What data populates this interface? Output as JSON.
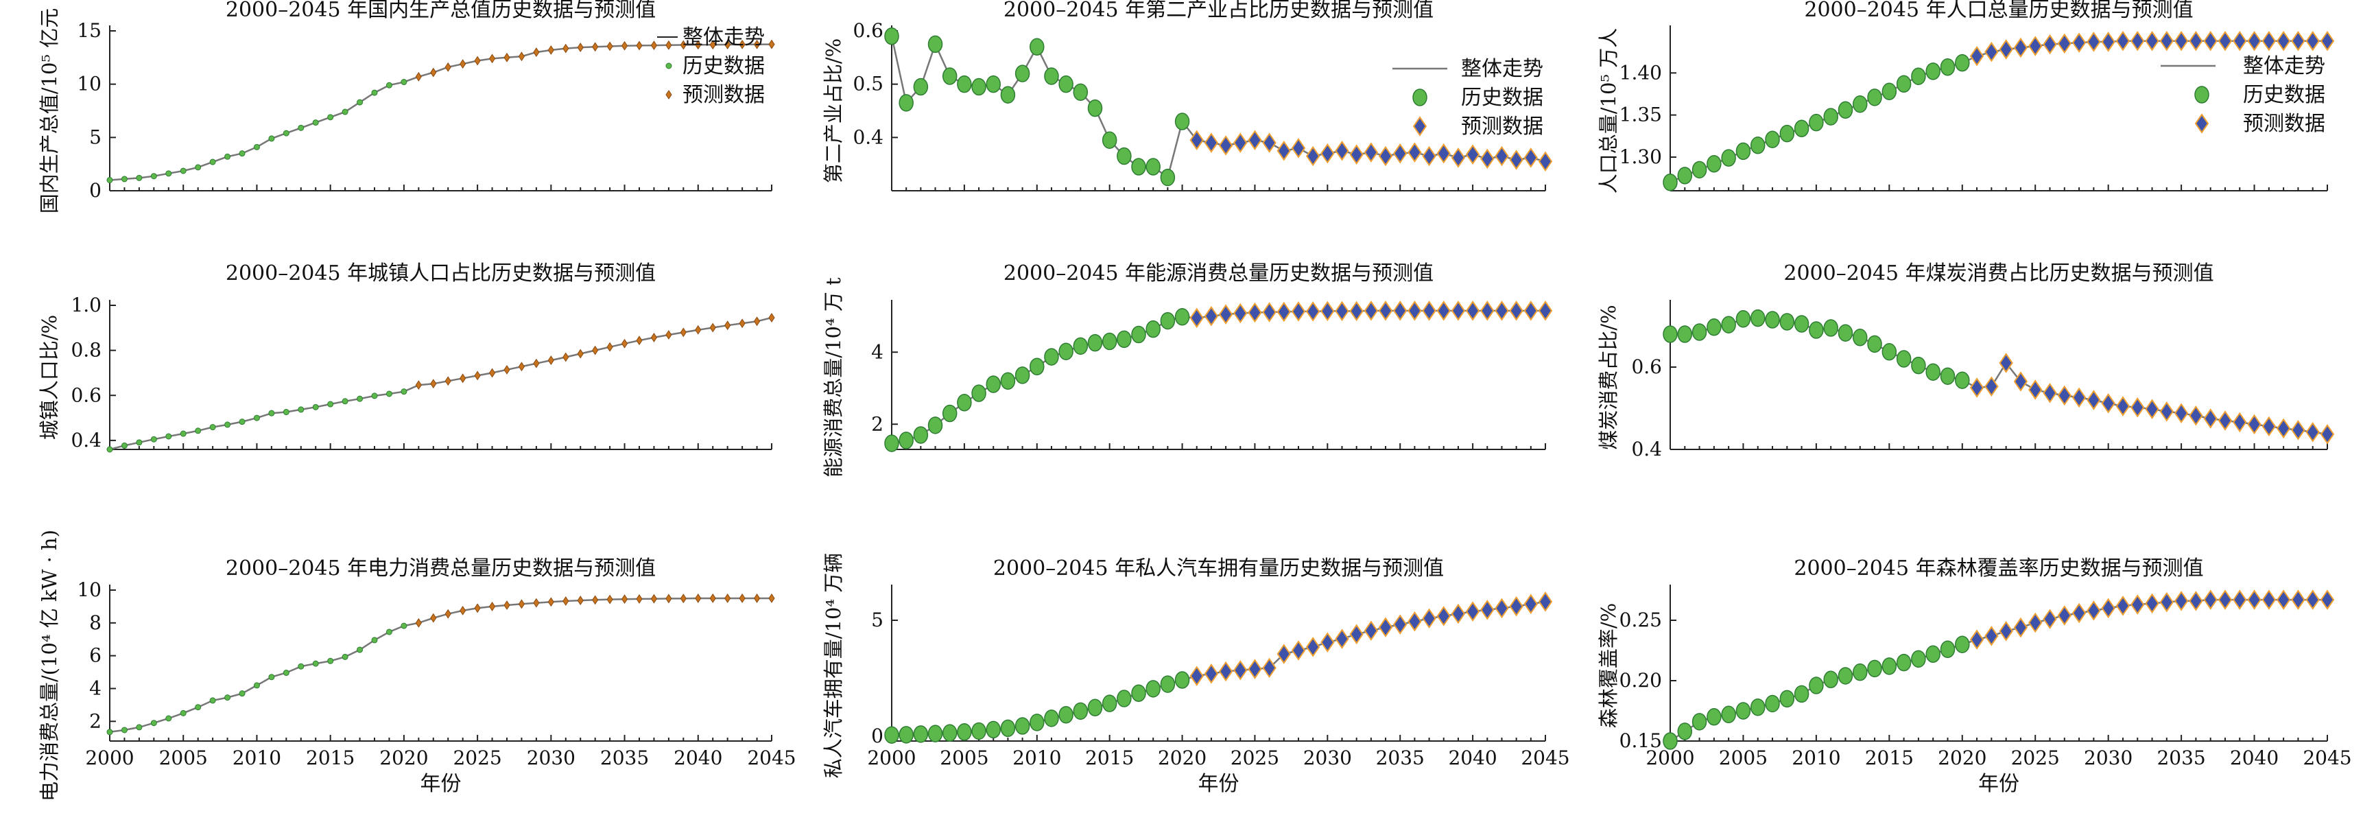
{
  "colors": {
    "trend": "#777777",
    "history_fill": "#5cb84b",
    "history_stroke": "#2e7d32",
    "forecast_fill": "#3d52a8",
    "forecast_stroke": "#f0a030",
    "small_forecast_fill": "#c8731e"
  },
  "chart_data": [
    {
      "type": "line",
      "title": "2000–2045 年国内生产总值历史数据与预测值",
      "ylabel": "国内生产总值/10⁵ 亿元",
      "xlabel": "",
      "x_ticks": [],
      "ylim": [
        0,
        15
      ],
      "y_ticks": [
        0,
        5,
        10,
        15
      ],
      "marker_style": "small",
      "legend": {
        "position": "right",
        "items": [
          "整体走势",
          "历史数据",
          "预测数据"
        ]
      },
      "history": {
        "x_start": 2000,
        "values": [
          1.0,
          1.1,
          1.2,
          1.37,
          1.62,
          1.87,
          2.2,
          2.7,
          3.2,
          3.5,
          4.1,
          4.9,
          5.4,
          5.9,
          6.4,
          6.9,
          7.4,
          8.3,
          9.2,
          9.9,
          10.2
        ]
      },
      "forecast": {
        "x_start": 2021,
        "values": [
          10.7,
          11.1,
          11.6,
          11.9,
          12.2,
          12.4,
          12.5,
          12.6,
          13.0,
          13.2,
          13.35,
          13.45,
          13.5,
          13.55,
          13.6,
          13.62,
          13.64,
          13.66,
          13.68,
          13.69,
          13.7,
          13.71,
          13.72,
          13.73,
          13.74
        ]
      }
    },
    {
      "type": "line",
      "title": "2000–2045 年第二产业占比历史数据与预测值",
      "ylabel": "第二产业占比/%",
      "xlabel": "",
      "x_ticks": [],
      "ylim": [
        0.3,
        0.6
      ],
      "y_ticks": [
        0.4,
        0.5,
        0.6
      ],
      "marker_style": "large",
      "legend": {
        "position": "top-right",
        "items": [
          "整体走势",
          "历史数据",
          "预测数据"
        ]
      },
      "history": {
        "x_start": 2000,
        "values": [
          0.59,
          0.465,
          0.495,
          0.575,
          0.515,
          0.5,
          0.495,
          0.5,
          0.48,
          0.52,
          0.57,
          0.515,
          0.5,
          0.485,
          0.455,
          0.395,
          0.365,
          0.345,
          0.345,
          0.325,
          0.43
        ]
      },
      "forecast": {
        "x_start": 2021,
        "values": [
          0.395,
          0.39,
          0.385,
          0.39,
          0.395,
          0.39,
          0.375,
          0.38,
          0.365,
          0.37,
          0.375,
          0.368,
          0.372,
          0.365,
          0.37,
          0.372,
          0.365,
          0.37,
          0.362,
          0.368,
          0.36,
          0.365,
          0.358,
          0.362,
          0.355
        ]
      }
    },
    {
      "type": "line",
      "title": "2000–2045 年人口总量历史数据与预测值",
      "ylabel": "人口总量/10⁵ 万人",
      "xlabel": "",
      "x_ticks": [],
      "ylim": [
        1.26,
        1.45
      ],
      "y_ticks": [
        1.3,
        1.35,
        1.4
      ],
      "y_tick_labels": [
        "1.30",
        "1.35",
        "1.40"
      ],
      "marker_style": "large",
      "legend": {
        "position": "right",
        "items": [
          "整体走势",
          "历史数据",
          "预测数据"
        ]
      },
      "history": {
        "x_start": 2000,
        "values": [
          1.27,
          1.278,
          1.285,
          1.292,
          1.299,
          1.307,
          1.314,
          1.321,
          1.328,
          1.334,
          1.341,
          1.348,
          1.356,
          1.363,
          1.371,
          1.378,
          1.387,
          1.396,
          1.402,
          1.407,
          1.412
        ]
      },
      "forecast": {
        "x_start": 2021,
        "values": [
          1.42,
          1.425,
          1.428,
          1.43,
          1.432,
          1.434,
          1.435,
          1.436,
          1.437,
          1.437,
          1.438,
          1.438,
          1.438,
          1.438,
          1.438,
          1.438,
          1.438,
          1.438,
          1.438,
          1.438,
          1.438,
          1.438,
          1.438,
          1.438,
          1.438
        ]
      }
    },
    {
      "type": "line",
      "title": "2000–2045 年城镇人口占比历史数据与预测值",
      "ylabel": "城镇人口比/%",
      "xlabel": "",
      "x_ticks": [],
      "ylim": [
        0.36,
        1.0
      ],
      "y_ticks": [
        0.4,
        0.6,
        0.8,
        1.0
      ],
      "y_tick_labels": [
        "0.4",
        "0.6",
        "0.8",
        "1.0"
      ],
      "marker_style": "small",
      "legend": null,
      "history": {
        "x_start": 2000,
        "values": [
          0.36,
          0.377,
          0.391,
          0.405,
          0.418,
          0.43,
          0.443,
          0.459,
          0.47,
          0.483,
          0.5,
          0.521,
          0.526,
          0.537,
          0.548,
          0.561,
          0.574,
          0.585,
          0.598,
          0.607,
          0.617
        ]
      },
      "forecast": {
        "x_start": 2021,
        "values": [
          0.646,
          0.652,
          0.664,
          0.676,
          0.688,
          0.7,
          0.714,
          0.728,
          0.742,
          0.756,
          0.77,
          0.785,
          0.8,
          0.815,
          0.83,
          0.844,
          0.857,
          0.869,
          0.88,
          0.891,
          0.901,
          0.911,
          0.92,
          0.929,
          0.945
        ]
      }
    },
    {
      "type": "line",
      "title": "2000–2045 年能源消费总量历史数据与预测值",
      "ylabel": "能源消费总量/10⁴ 万 t",
      "xlabel": "",
      "x_ticks": [],
      "ylim": [
        1.3,
        5.3
      ],
      "y_ticks": [
        2,
        4
      ],
      "marker_style": "large",
      "legend": null,
      "history": {
        "x_start": 2000,
        "values": [
          1.47,
          1.55,
          1.7,
          1.97,
          2.3,
          2.6,
          2.86,
          3.11,
          3.2,
          3.36,
          3.6,
          3.87,
          4.02,
          4.17,
          4.26,
          4.3,
          4.36,
          4.49,
          4.64,
          4.87,
          4.98
        ]
      },
      "forecast": {
        "x_start": 2021,
        "values": [
          4.95,
          5.0,
          5.05,
          5.08,
          5.1,
          5.11,
          5.12,
          5.13,
          5.13,
          5.14,
          5.14,
          5.14,
          5.15,
          5.15,
          5.15,
          5.15,
          5.15,
          5.15,
          5.15,
          5.15,
          5.15,
          5.15,
          5.15,
          5.15,
          5.15
        ]
      }
    },
    {
      "type": "line",
      "title": "2000–2045 年煤炭消费占比历史数据与预测值",
      "ylabel": "煤炭消费占比/%",
      "xlabel": "",
      "x_ticks": [],
      "ylim": [
        0.4,
        0.75
      ],
      "y_ticks": [
        0.4,
        0.6
      ],
      "y_tick_labels": [
        "0.4",
        "0.6"
      ],
      "marker_style": "large",
      "legend": null,
      "history": {
        "x_start": 2000,
        "values": [
          0.68,
          0.68,
          0.685,
          0.697,
          0.703,
          0.717,
          0.719,
          0.715,
          0.71,
          0.705,
          0.69,
          0.695,
          0.683,
          0.672,
          0.656,
          0.637,
          0.62,
          0.604,
          0.588,
          0.578,
          0.568
        ]
      },
      "forecast": {
        "x_start": 2021,
        "values": [
          0.55,
          0.553,
          0.61,
          0.565,
          0.545,
          0.537,
          0.531,
          0.526,
          0.52,
          0.512,
          0.505,
          0.502,
          0.498,
          0.492,
          0.488,
          0.482,
          0.475,
          0.47,
          0.466,
          0.461,
          0.456,
          0.451,
          0.447,
          0.442,
          0.437
        ]
      }
    },
    {
      "type": "line",
      "title": "2000–2045 年电力消费总量历史数据与预测值",
      "ylabel": "电力消费总量/(10⁴ 亿 kW · h)",
      "xlabel": "年份",
      "x_ticks": [
        2000,
        2005,
        2010,
        2015,
        2020,
        2025,
        2030,
        2035,
        2040,
        2045
      ],
      "ylim": [
        0.8,
        10
      ],
      "y_ticks": [
        2,
        4,
        6,
        8,
        10
      ],
      "marker_style": "small",
      "legend": null,
      "history": {
        "x_start": 2000,
        "values": [
          1.35,
          1.47,
          1.64,
          1.9,
          2.18,
          2.5,
          2.86,
          3.27,
          3.45,
          3.7,
          4.19,
          4.7,
          4.96,
          5.35,
          5.52,
          5.68,
          5.93,
          6.36,
          6.95,
          7.45,
          7.82
        ]
      },
      "forecast": {
        "x_start": 2021,
        "values": [
          8.0,
          8.3,
          8.55,
          8.75,
          8.9,
          9.0,
          9.08,
          9.15,
          9.22,
          9.28,
          9.33,
          9.37,
          9.4,
          9.43,
          9.45,
          9.46,
          9.47,
          9.48,
          9.49,
          9.5,
          9.5,
          9.5,
          9.5,
          9.5,
          9.5
        ]
      }
    },
    {
      "type": "line",
      "title": "2000–2045 年私人汽车拥有量历史数据与预测值",
      "ylabel": "私人汽车拥有量/10⁴ 万辆",
      "xlabel": "年份",
      "x_ticks": [
        2000,
        2005,
        2010,
        2015,
        2020,
        2025,
        2030,
        2035,
        2040,
        2045
      ],
      "ylim": [
        -0.2,
        6.3
      ],
      "y_ticks": [
        0,
        5
      ],
      "marker_style": "large",
      "legend": null,
      "history": {
        "x_start": 2000,
        "values": [
          0.06,
          0.07,
          0.1,
          0.12,
          0.15,
          0.19,
          0.23,
          0.29,
          0.35,
          0.45,
          0.6,
          0.78,
          0.93,
          1.09,
          1.24,
          1.42,
          1.63,
          1.86,
          2.05,
          2.25,
          2.43
        ]
      },
      "forecast": {
        "x_start": 2021,
        "values": [
          2.6,
          2.7,
          2.8,
          2.85,
          2.9,
          2.95,
          3.55,
          3.7,
          3.85,
          4.05,
          4.2,
          4.4,
          4.55,
          4.7,
          4.82,
          4.95,
          5.08,
          5.18,
          5.28,
          5.38,
          5.45,
          5.52,
          5.6,
          5.7,
          5.8
        ]
      }
    },
    {
      "type": "line",
      "title": "2000–2045 年森林覆盖率历史数据与预测值",
      "ylabel": "森林覆盖率/%",
      "xlabel": "年份",
      "x_ticks": [
        2000,
        2005,
        2010,
        2015,
        2020,
        2025,
        2030,
        2035,
        2040,
        2045
      ],
      "ylim": [
        0.15,
        0.275
      ],
      "y_ticks": [
        0.15,
        0.2,
        0.25
      ],
      "y_tick_labels": [
        "0.15",
        "0.20",
        "0.25"
      ],
      "marker_style": "large",
      "legend": null,
      "history": {
        "x_start": 2000,
        "values": [
          0.15,
          0.158,
          0.166,
          0.17,
          0.172,
          0.175,
          0.178,
          0.181,
          0.185,
          0.189,
          0.196,
          0.201,
          0.204,
          0.207,
          0.21,
          0.212,
          0.215,
          0.218,
          0.222,
          0.226,
          0.23
        ]
      },
      "forecast": {
        "x_start": 2021,
        "values": [
          0.234,
          0.237,
          0.241,
          0.244,
          0.248,
          0.251,
          0.254,
          0.256,
          0.258,
          0.26,
          0.262,
          0.263,
          0.264,
          0.265,
          0.266,
          0.266,
          0.267,
          0.267,
          0.267,
          0.267,
          0.267,
          0.267,
          0.267,
          0.267,
          0.267
        ]
      }
    }
  ]
}
